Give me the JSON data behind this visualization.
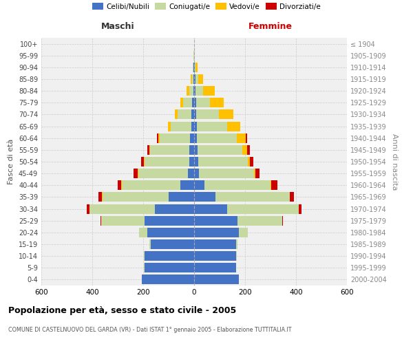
{
  "age_groups": [
    "0-4",
    "5-9",
    "10-14",
    "15-19",
    "20-24",
    "25-29",
    "30-34",
    "35-39",
    "40-44",
    "45-49",
    "50-54",
    "55-59",
    "60-64",
    "65-69",
    "70-74",
    "75-79",
    "80-84",
    "85-89",
    "90-94",
    "95-99",
    "100+"
  ],
  "birth_years": [
    "2000-2004",
    "1995-1999",
    "1990-1994",
    "1985-1989",
    "1980-1984",
    "1975-1979",
    "1970-1974",
    "1965-1969",
    "1960-1964",
    "1955-1959",
    "1950-1954",
    "1945-1949",
    "1940-1944",
    "1935-1939",
    "1930-1934",
    "1925-1929",
    "1920-1924",
    "1915-1919",
    "1910-1914",
    "1905-1909",
    "≤ 1904"
  ],
  "maschi_celibi": [
    205,
    195,
    195,
    170,
    185,
    195,
    155,
    100,
    55,
    25,
    20,
    18,
    15,
    12,
    10,
    7,
    4,
    3,
    2,
    1,
    0
  ],
  "maschi_coniugati": [
    0,
    1,
    2,
    5,
    30,
    170,
    255,
    260,
    230,
    195,
    175,
    155,
    120,
    80,
    55,
    35,
    15,
    5,
    3,
    1,
    0
  ],
  "maschi_vedovi": [
    0,
    0,
    0,
    0,
    0,
    0,
    1,
    1,
    1,
    2,
    2,
    3,
    5,
    10,
    12,
    12,
    10,
    5,
    1,
    0,
    0
  ],
  "maschi_divorziati": [
    0,
    0,
    0,
    0,
    0,
    2,
    10,
    15,
    15,
    15,
    10,
    8,
    5,
    2,
    0,
    0,
    0,
    0,
    0,
    0,
    0
  ],
  "femmine_celibi": [
    175,
    165,
    165,
    165,
    175,
    170,
    130,
    85,
    40,
    20,
    15,
    14,
    12,
    10,
    8,
    7,
    5,
    5,
    2,
    1,
    0
  ],
  "femmine_coniugati": [
    0,
    1,
    2,
    5,
    35,
    175,
    280,
    290,
    260,
    215,
    195,
    175,
    155,
    120,
    90,
    55,
    30,
    10,
    3,
    1,
    0
  ],
  "femmine_vedovi": [
    0,
    0,
    0,
    0,
    0,
    0,
    1,
    2,
    3,
    5,
    10,
    20,
    35,
    50,
    55,
    55,
    45,
    20,
    8,
    2,
    0
  ],
  "femmine_divorziati": [
    0,
    0,
    0,
    0,
    2,
    3,
    10,
    15,
    25,
    18,
    12,
    10,
    5,
    2,
    0,
    0,
    0,
    0,
    0,
    0,
    0
  ],
  "colors": {
    "celibi": "#4472c4",
    "coniugati": "#c5d9a0",
    "vedovi": "#ffc000",
    "divorziati": "#cc0000"
  },
  "title": "Popolazione per età, sesso e stato civile - 2005",
  "subtitle": "COMUNE DI CASTELNUOVO DEL GARDA (VR) - Dati ISTAT 1° gennaio 2005 - Elaborazione TUTTITALIA.IT",
  "xlabel_left": "Maschi",
  "xlabel_right": "Femmine",
  "ylabel_left": "Fasce di età",
  "ylabel_right": "Anni di nascita",
  "xlim": 600,
  "background_color": "#ffffff",
  "plot_bg_color": "#f0f0f0",
  "grid_color": "#cccccc"
}
